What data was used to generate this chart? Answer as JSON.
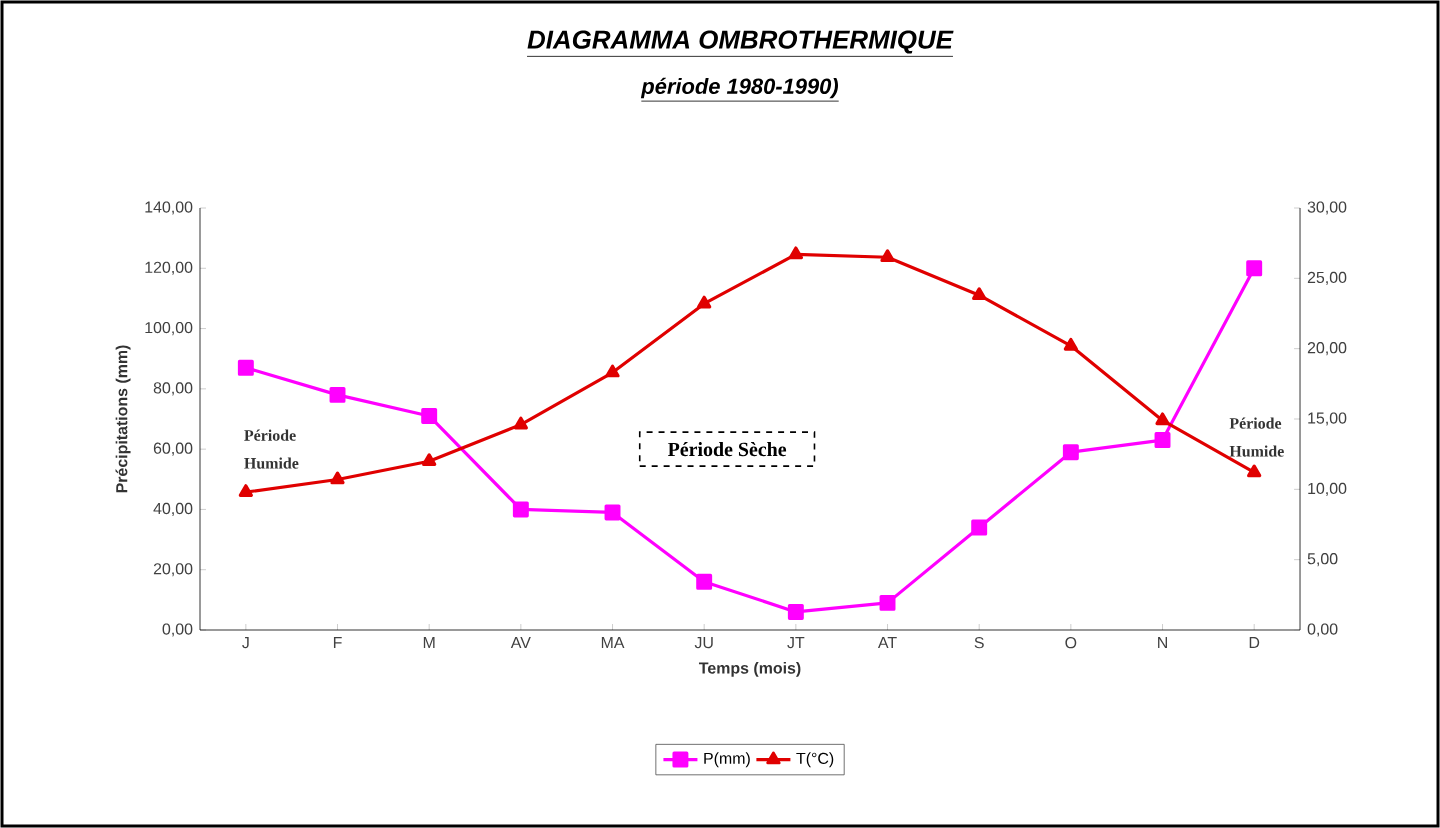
{
  "chart_data": {
    "type": "line",
    "title": "DIAGRAMMA OMBROTHERMIQUE",
    "subtitle": "période 1980-1990)",
    "xlabel": "Temps (mois)",
    "ylabel": "Précipitations (mm)",
    "categories": [
      "J",
      "F",
      "M",
      "AV",
      "MA",
      "JU",
      "JT",
      "AT",
      "S",
      "O",
      "N",
      "D"
    ],
    "series": [
      {
        "name": "P(mm)",
        "color": "#ff00ff",
        "marker": "square",
        "values": [
          87,
          78,
          71,
          40,
          39,
          16,
          6,
          9,
          34,
          59,
          63,
          120
        ]
      },
      {
        "name": "T(°C)",
        "color": "#e00000",
        "marker": "triangle",
        "axis": "y2",
        "values": [
          9.8,
          10.7,
          12,
          14.6,
          18.3,
          23.2,
          26.7,
          26.5,
          23.8,
          20.2,
          14.9,
          11.2
        ]
      }
    ],
    "ylim": [
      0,
      140
    ],
    "yticks": [
      {
        "value": 0,
        "label": "0,00"
      },
      {
        "value": 20,
        "label": "20,00"
      },
      {
        "value": 40,
        "label": "40,00"
      },
      {
        "value": 60,
        "label": "60,00"
      },
      {
        "value": 80,
        "label": "80,00"
      },
      {
        "value": 100,
        "label": "100,00"
      },
      {
        "value": 120,
        "label": "120,00"
      },
      {
        "value": 140,
        "label": "140,00"
      }
    ],
    "y2lim": [
      0,
      30
    ],
    "y2ticks": [
      {
        "value": 0,
        "label": "0,00"
      },
      {
        "value": 5,
        "label": "5,00"
      },
      {
        "value": 10,
        "label": "10,00"
      },
      {
        "value": 15,
        "label": "15,00"
      },
      {
        "value": 20,
        "label": "20,00"
      },
      {
        "value": 25,
        "label": "25,00"
      },
      {
        "value": 30,
        "label": "30,00"
      }
    ],
    "annotations": [
      "Période Sèche",
      "Période Humide",
      "Période Humide"
    ],
    "legend": "bottom",
    "grid": false
  }
}
